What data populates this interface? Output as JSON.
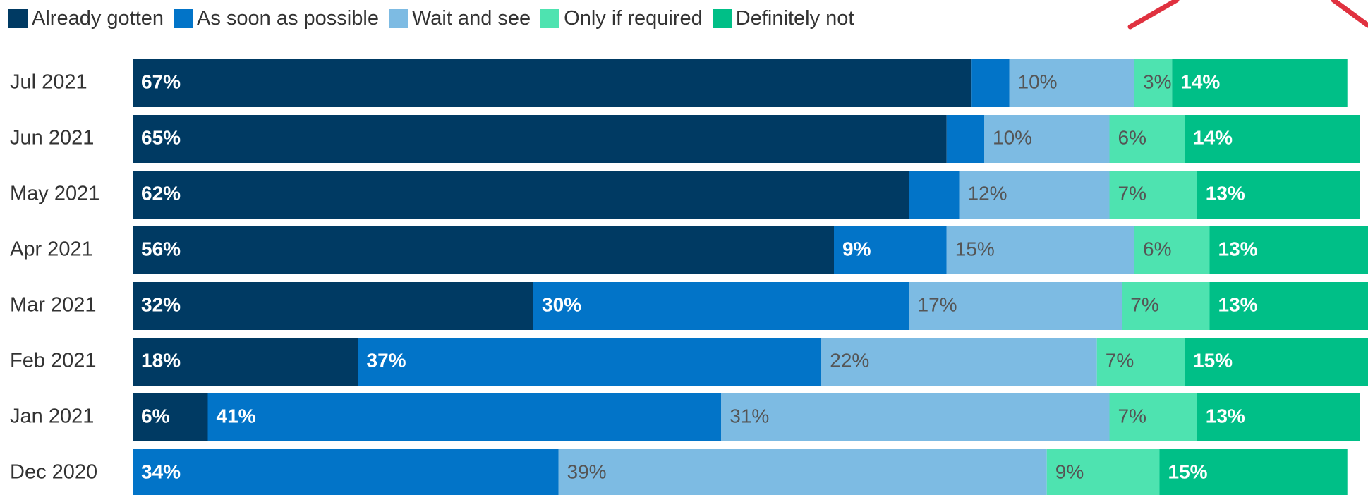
{
  "chart_data": {
    "type": "bar",
    "orientation": "horizontal",
    "stacked": true,
    "categories": [
      "Jul 2021",
      "Jun 2021",
      "May 2021",
      "Apr 2021",
      "Mar 2021",
      "Feb 2021",
      "Jan 2021",
      "Dec 2020"
    ],
    "series": [
      {
        "name": "Already gotten",
        "color": "#003a63",
        "values": [
          67,
          65,
          62,
          56,
          32,
          18,
          6,
          0
        ],
        "labels": [
          "67%",
          "65%",
          "62%",
          "56%",
          "32%",
          "18%",
          "6%",
          ""
        ]
      },
      {
        "name": "As soon as possible",
        "color": "#0274c8",
        "values": [
          3,
          3,
          4,
          9,
          30,
          37,
          41,
          34
        ],
        "labels": [
          "",
          "",
          "",
          "9%",
          "30%",
          "37%",
          "41%",
          "34%"
        ]
      },
      {
        "name": "Wait and see",
        "color": "#7dbbe3",
        "values": [
          10,
          10,
          12,
          15,
          17,
          22,
          31,
          39
        ],
        "labels": [
          "10%",
          "10%",
          "12%",
          "15%",
          "17%",
          "22%",
          "31%",
          "39%"
        ]
      },
      {
        "name": "Only if required",
        "color": "#4ee3b0",
        "values": [
          3,
          6,
          7,
          6,
          7,
          7,
          7,
          9
        ],
        "labels": [
          "3%",
          "6%",
          "7%",
          "6%",
          "7%",
          "7%",
          "7%",
          "9%"
        ]
      },
      {
        "name": "Definitely not",
        "color": "#00bf87",
        "values": [
          14,
          14,
          13,
          13,
          13,
          15,
          13,
          15
        ],
        "labels": [
          "14%",
          "14%",
          "13%",
          "13%",
          "13%",
          "15%",
          "13%",
          "15%"
        ]
      }
    ],
    "legend_position": "top-left",
    "grid": false,
    "title": "",
    "xlabel": "",
    "ylabel": ""
  },
  "annotation": {
    "color": "#e0313f"
  }
}
